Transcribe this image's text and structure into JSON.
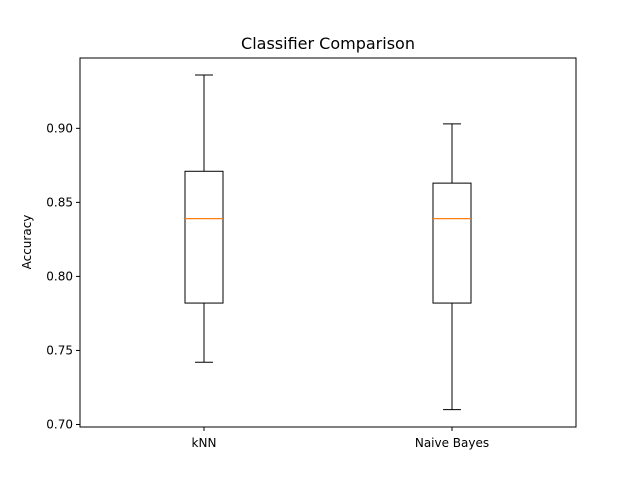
{
  "chart_data": {
    "type": "box",
    "title": "Classifier Comparison",
    "xlabel": "",
    "ylabel": "Accuracy",
    "ylim": [
      0.6983,
      0.9475
    ],
    "yticks": [
      0.7,
      0.75,
      0.8,
      0.85,
      0.9
    ],
    "ytick_labels": [
      "0.70",
      "0.75",
      "0.80",
      "0.85",
      "0.90"
    ],
    "grid": false,
    "categories": [
      "kNN",
      "Naive Bayes"
    ],
    "series": [
      {
        "category": "kNN",
        "whisker_low": 0.742,
        "q1": 0.782,
        "median": 0.839,
        "q3": 0.871,
        "whisker_high": 0.936
      },
      {
        "category": "Naive Bayes",
        "whisker_low": 0.71,
        "q1": 0.782,
        "median": 0.839,
        "q3": 0.863,
        "whisker_high": 0.903
      }
    ],
    "colors": {
      "box": "#000000",
      "median": "#ff7f0e",
      "whisker": "#000000",
      "axes": "#000000"
    }
  }
}
